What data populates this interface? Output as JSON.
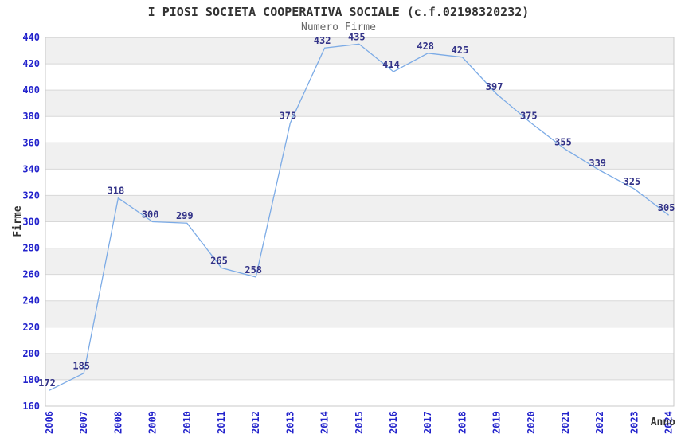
{
  "title": "I PIOSI SOCIETA COOPERATIVA SOCIALE (c.f.02198320232)",
  "subtitle": "Numero Firme",
  "chart_data": {
    "type": "line",
    "title": "I PIOSI SOCIETA COOPERATIVA SOCIALE (c.f.02198320232)",
    "subtitle": "Numero Firme",
    "xlabel": "Anno",
    "ylabel": "Firme",
    "x": [
      2006,
      2007,
      2008,
      2009,
      2010,
      2011,
      2012,
      2013,
      2014,
      2015,
      2016,
      2017,
      2018,
      2019,
      2020,
      2021,
      2022,
      2023,
      2024
    ],
    "series": [
      {
        "name": "Numero Firme",
        "values": [
          172,
          185,
          318,
          300,
          299,
          265,
          258,
          375,
          432,
          435,
          414,
          428,
          425,
          397,
          375,
          355,
          339,
          325,
          305
        ]
      }
    ],
    "ylim": [
      160,
      440
    ],
    "ytick_step": 20,
    "grid": true,
    "banding": "alternating horizontal 20-unit bands, gray starting at top",
    "legend_position": "none",
    "point_labels": true,
    "colors": {
      "line": "#7cabe6",
      "band": "#f0f0f0",
      "gridline": "#d8d8d8",
      "plot_border": "#c9c9c9",
      "tick_label": "#2323cc",
      "point_label": "#333388",
      "title": "#333333",
      "subtitle": "#666666",
      "axis_title": "#333333",
      "background": "#ffffff"
    }
  }
}
